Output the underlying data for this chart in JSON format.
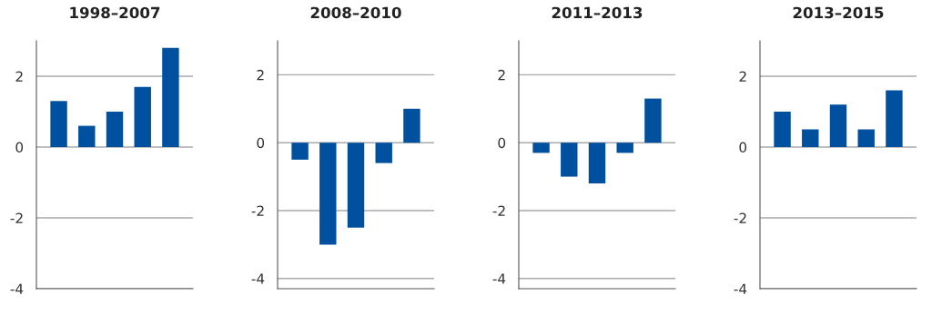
{
  "chart_data": [
    {
      "type": "bar",
      "title": "1998–2007",
      "categories": [
        null,
        null,
        null,
        null,
        null
      ],
      "series": [
        {
          "color": "#0050a0",
          "values": [
            1.3,
            0.6,
            1.0,
            1.7,
            2.8
          ]
        }
      ],
      "ylim": [
        -4,
        3
      ],
      "yticks": [
        -4,
        -2,
        0,
        2
      ],
      "grid": "y"
    },
    {
      "type": "bar",
      "title": "2008–2010",
      "categories": [
        null,
        null,
        null,
        null,
        null
      ],
      "series": [
        {
          "color": "#0050a0",
          "values": [
            -0.5,
            -3.0,
            -2.5,
            -0.6,
            1.0
          ]
        }
      ],
      "ylim": [
        -4.3,
        3
      ],
      "yticks": [
        -4,
        -2,
        0,
        2
      ],
      "grid": "y"
    },
    {
      "type": "bar",
      "title": "2011–2013",
      "categories": [
        null,
        null,
        null,
        null,
        null
      ],
      "series": [
        {
          "color": "#0050a0",
          "values": [
            -0.3,
            -1.0,
            -1.2,
            -0.3,
            1.3
          ]
        }
      ],
      "ylim": [
        -4.3,
        3
      ],
      "yticks": [
        -4,
        -2,
        0,
        2
      ],
      "grid": "y"
    },
    {
      "type": "bar",
      "title": "2013–2015",
      "categories": [
        null,
        null,
        null,
        null,
        null
      ],
      "series": [
        {
          "color": "#0050a0",
          "values": [
            1.0,
            0.5,
            1.2,
            0.5,
            1.6
          ]
        }
      ],
      "ylim": [
        -4,
        3
      ],
      "yticks": [
        -4,
        -2,
        0,
        2
      ],
      "grid": "y"
    }
  ]
}
